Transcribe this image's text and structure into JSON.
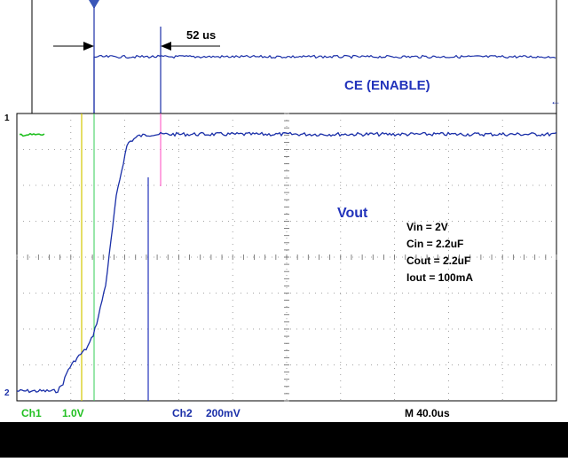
{
  "chart_data": {
    "type": "line",
    "title": "",
    "xlabel": "",
    "ylabel": "",
    "time_per_div_us": 40,
    "divisions": 10,
    "annotation_delay": "52 us",
    "ce_label": "CE (ENABLE)",
    "vout_label": "Vout",
    "conditions": [
      "Vin = 2V",
      "Cin = 2.2uF",
      "Cout = 2.2uF",
      "Iout = 100mA"
    ],
    "ch1_label": "Ch1",
    "ch1_scale": "1.0V",
    "ch2_label": "Ch2",
    "ch2_scale": "200mV",
    "timebase": "M 40.0us",
    "marker_ch1": "1",
    "marker_ch2": "2",
    "series": [
      {
        "channel": "Ch2",
        "x_us": [
          0,
          20,
          30,
          34,
          38,
          44,
          52,
          56,
          60,
          66,
          74,
          82,
          90,
          100,
          120,
          160,
          200,
          240,
          280,
          320,
          360,
          400
        ],
        "y_V": [
          0.0,
          0.0,
          0.0,
          0.04,
          0.12,
          0.18,
          0.24,
          0.3,
          0.4,
          0.6,
          1.1,
          1.38,
          1.42,
          1.43,
          1.43,
          1.43,
          1.43,
          1.43,
          1.43,
          1.43,
          1.43,
          1.43
        ]
      },
      {
        "channel": "Ch1",
        "x_us": [
          0,
          28,
          30,
          400
        ],
        "y_V": [
          0.0,
          0.0,
          2.0,
          2.0
        ]
      }
    ],
    "grid": true
  },
  "colors": {
    "ch1": "#22c022",
    "ch2": "#1a2fa8",
    "text_blue": "#2233bb",
    "grid": "#888888",
    "cursor_yellow": "#d4c800",
    "cursor_pink": "#ff66cc",
    "cursor_green": "#33cc55",
    "cursor_blue": "#2233bb"
  }
}
